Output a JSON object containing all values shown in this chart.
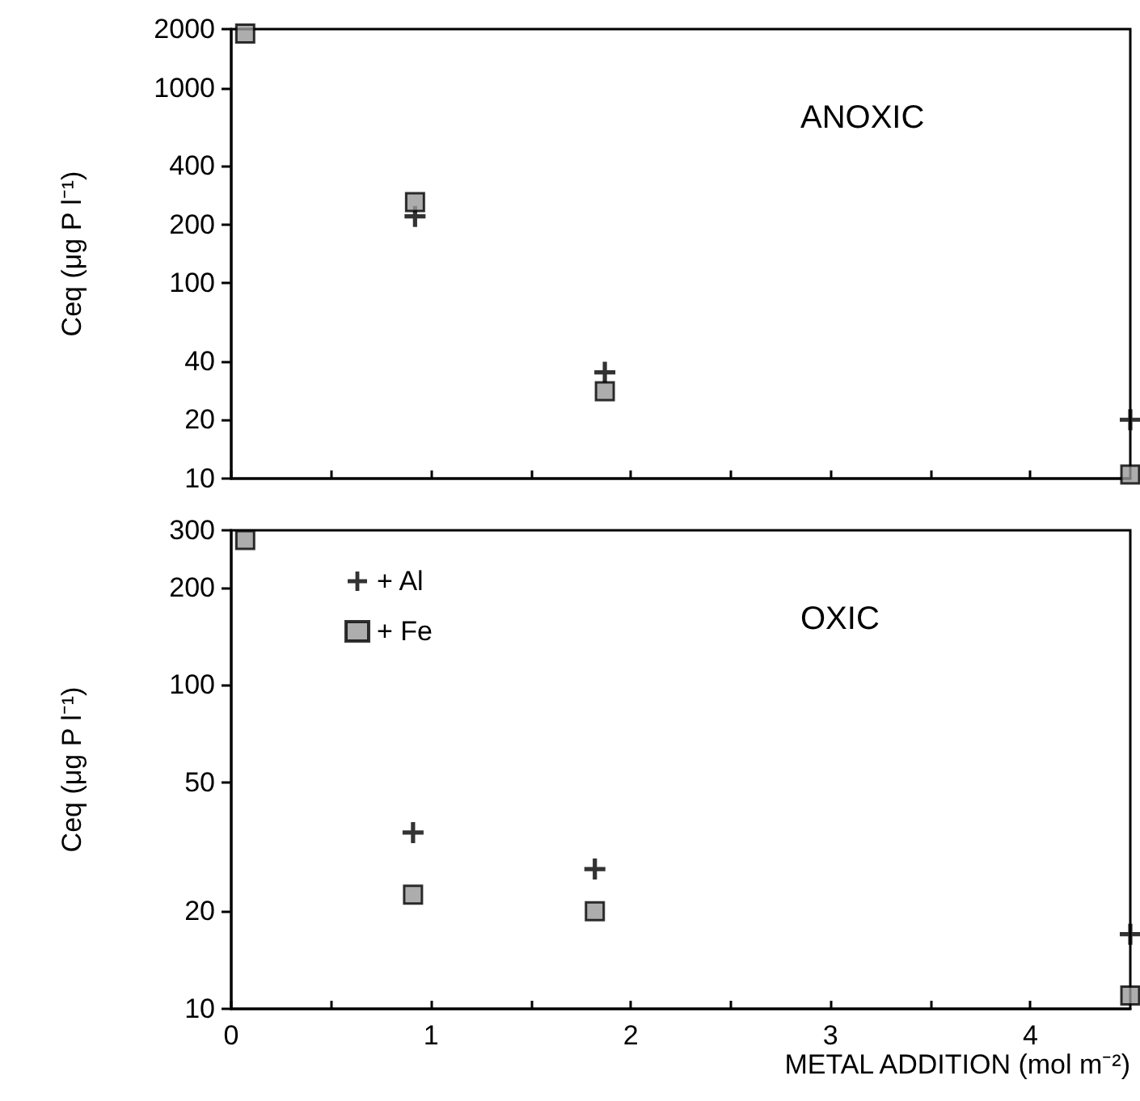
{
  "chart_data": [
    {
      "type": "scatter",
      "title": "ANOXIC",
      "ylabel": "Ceq (μg P l⁻¹)",
      "log": "y",
      "grid": false,
      "tick_labels": "y",
      "legend": false,
      "xlim": [
        0,
        4.5
      ],
      "xticks": [
        0,
        {
          "value": 0.5,
          "label": null
        },
        1,
        {
          "value": 1.5,
          "label": null
        },
        2,
        {
          "value": 2.5,
          "label": null
        },
        3,
        {
          "value": 3.5,
          "label": null
        },
        4
      ],
      "ylim": [
        10,
        2000
      ],
      "yticks": [
        10,
        20,
        40,
        100,
        200,
        400,
        1000,
        2000
      ],
      "series": [
        {
          "color": "#000000",
          "marker": "cross",
          "x": [
            0.92,
            1.87,
            4.5
          ],
          "values": [
            220,
            35,
            20
          ]
        },
        {
          "color": "#999999",
          "marker": "square",
          "x": [
            0.07,
            0.92,
            1.87,
            4.5
          ],
          "values": [
            1900,
            260,
            28,
            10.5
          ]
        }
      ]
    },
    {
      "type": "scatter",
      "title": "OXIC",
      "ylabel": "Ceq (μg P l⁻¹)",
      "xlabel": "METAL ADDITION (mol m⁻²)",
      "log": "y",
      "grid": false,
      "legend": "top left",
      "xlim": [
        0,
        4.5
      ],
      "xticks": [
        0,
        {
          "value": 0.5,
          "label": null
        },
        1,
        {
          "value": 1.5,
          "label": null
        },
        2,
        {
          "value": 2.5,
          "label": null
        },
        3,
        {
          "value": 3.5,
          "label": null
        },
        4
      ],
      "ylim": [
        10,
        300
      ],
      "yticks": [
        10,
        20,
        50,
        100,
        200,
        300
      ],
      "series": [
        {
          "name": "+ Al",
          "color": "#000000",
          "marker": "cross",
          "x": [
            0.91,
            1.82,
            4.5
          ],
          "values": [
            35,
            27,
            17
          ]
        },
        {
          "name": "+ Fe",
          "color": "#999999",
          "marker": "square",
          "x": [
            0.07,
            0.91,
            1.82,
            4.5
          ],
          "values": [
            280,
            22.5,
            20,
            11
          ]
        }
      ]
    }
  ]
}
